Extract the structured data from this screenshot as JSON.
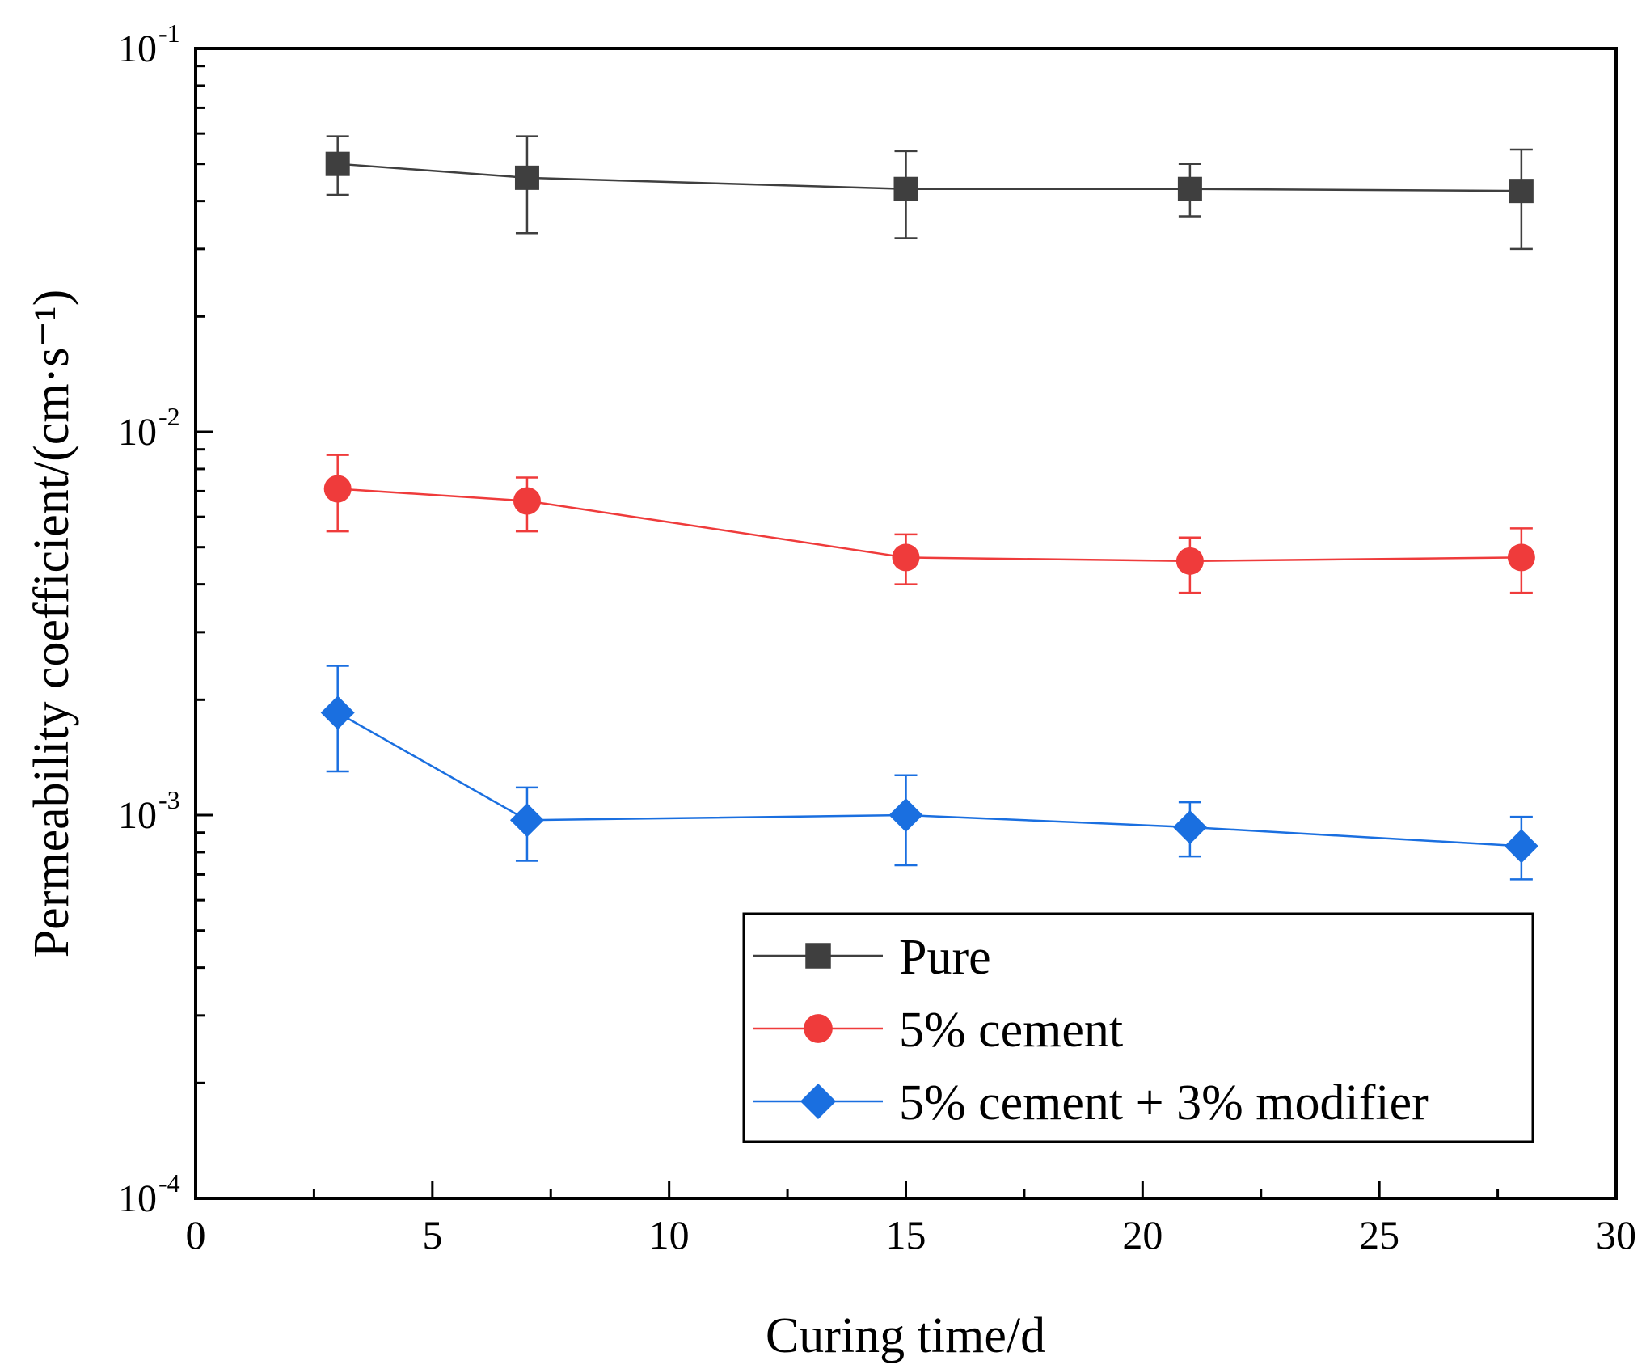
{
  "chart_data": {
    "type": "line",
    "title": "",
    "xlabel": "Curing time/d",
    "ylabel": "Permeability coefficient/(cm·s⁻¹)",
    "xlim": [
      0,
      30
    ],
    "ylim": [
      0.0001,
      0.1
    ],
    "yscale": "log",
    "x_ticks": [
      {
        "value": 0,
        "label": "0"
      },
      {
        "value": 5,
        "label": "5"
      },
      {
        "value": 10,
        "label": "10"
      },
      {
        "value": 15,
        "label": "15"
      },
      {
        "value": 20,
        "label": "20"
      },
      {
        "value": 25,
        "label": "25"
      },
      {
        "value": 30,
        "label": "30"
      }
    ],
    "y_ticks": [
      {
        "value": 0.1,
        "base": "10",
        "exp": "-1"
      },
      {
        "value": 0.01,
        "base": "10",
        "exp": "-2"
      },
      {
        "value": 0.001,
        "base": "10",
        "exp": "-3"
      },
      {
        "value": 0.0001,
        "base": "10",
        "exp": "-4"
      }
    ],
    "legend_position": "bottom-right",
    "series": [
      {
        "name": "Pure",
        "color": "#3f3f3f",
        "marker": "square",
        "x": [
          3,
          7,
          15,
          21,
          28
        ],
        "y": [
          0.05,
          0.046,
          0.043,
          0.043,
          0.0425
        ],
        "err_low": [
          0.0415,
          0.033,
          0.032,
          0.0365,
          0.03
        ],
        "err_high": [
          0.059,
          0.059,
          0.054,
          0.05,
          0.0545
        ]
      },
      {
        "name": "5% cement",
        "color": "#ef3b3b",
        "marker": "circle",
        "x": [
          3,
          7,
          15,
          21,
          28
        ],
        "y": [
          0.0071,
          0.0066,
          0.0047,
          0.0046,
          0.0047
        ],
        "err_low": [
          0.0055,
          0.0055,
          0.004,
          0.0038,
          0.0038
        ],
        "err_high": [
          0.0087,
          0.0076,
          0.0054,
          0.0053,
          0.0056
        ]
      },
      {
        "name": "5% cement + 3% modifier",
        "color": "#1a6fe0",
        "marker": "diamond",
        "x": [
          3,
          7,
          15,
          21,
          28
        ],
        "y": [
          0.00185,
          0.00097,
          0.001,
          0.00093,
          0.00083
        ],
        "err_low": [
          0.0013,
          0.00076,
          0.00074,
          0.00078,
          0.00068
        ],
        "err_high": [
          0.00245,
          0.00118,
          0.00127,
          0.00108,
          0.00099
        ]
      }
    ]
  }
}
